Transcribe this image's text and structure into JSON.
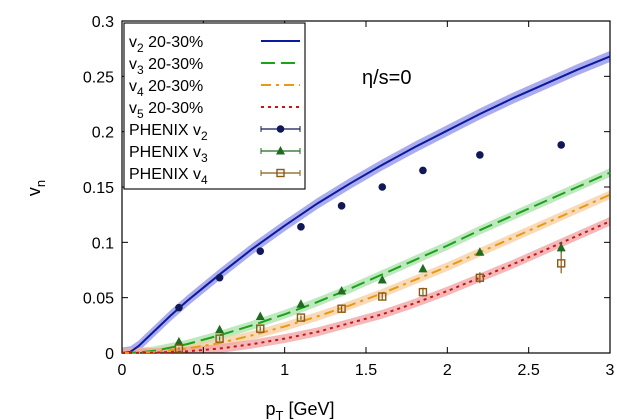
{
  "chart_data": {
    "type": "line",
    "xlabel": "p",
    "xlabel_sub": "T",
    "xlabel_unit": " [GeV]",
    "ylabel": "v",
    "ylabel_sub": "n",
    "xlim": [
      0,
      3
    ],
    "ylim": [
      0,
      0.3
    ],
    "xticks": [
      "0",
      "0.5",
      "1",
      "1.5",
      "2",
      "2.5",
      "3"
    ],
    "yticks": [
      "0",
      "0.05",
      "0.1",
      "0.15",
      "0.2",
      "0.25",
      "0.3"
    ],
    "annotation": "η/s=0",
    "legend_position": "top-left",
    "series": [
      {
        "name": "v2 20-30%",
        "label_main": "v",
        "label_sub": "2",
        "label_rest": " 20-30%",
        "kind": "line",
        "dash": "solid",
        "color": "#0a1a9e",
        "band_color": "#8f90e8",
        "x": [
          0,
          0.05,
          0.1,
          0.2,
          0.3,
          0.4,
          0.5,
          0.6,
          0.8,
          1.0,
          1.2,
          1.4,
          1.6,
          1.8,
          2.0,
          2.2,
          2.4,
          2.6,
          2.8,
          3.0
        ],
        "y": [
          0,
          0.001,
          0.006,
          0.02,
          0.034,
          0.047,
          0.059,
          0.071,
          0.094,
          0.115,
          0.135,
          0.153,
          0.17,
          0.186,
          0.201,
          0.216,
          0.23,
          0.243,
          0.256,
          0.268
        ],
        "band": 0.005
      },
      {
        "name": "v3 20-30%",
        "label_main": "v",
        "label_sub": "3",
        "label_rest": " 20-30%",
        "kind": "line",
        "dash": "14,6",
        "color": "#1aa31a",
        "band_color": "#a8e0a8",
        "x": [
          0,
          0.1,
          0.2,
          0.3,
          0.4,
          0.6,
          0.8,
          1.0,
          1.2,
          1.4,
          1.6,
          1.8,
          2.0,
          2.2,
          2.4,
          2.6,
          2.8,
          3.0
        ],
        "y": [
          0,
          0.0005,
          0.002,
          0.005,
          0.008,
          0.016,
          0.025,
          0.035,
          0.046,
          0.058,
          0.071,
          0.084,
          0.097,
          0.111,
          0.124,
          0.137,
          0.15,
          0.163
        ],
        "band": 0.004
      },
      {
        "name": "v4 20-30%",
        "label_main": "v",
        "label_sub": "4",
        "label_rest": " 20-30%",
        "kind": "line",
        "dash": "10,5,3,5",
        "color": "#e89a10",
        "band_color": "#f7cda0",
        "x": [
          0,
          0.2,
          0.4,
          0.6,
          0.8,
          1.0,
          1.2,
          1.4,
          1.6,
          1.8,
          2.0,
          2.2,
          2.4,
          2.6,
          2.8,
          3.0
        ],
        "y": [
          0,
          0.001,
          0.004,
          0.009,
          0.016,
          0.024,
          0.033,
          0.043,
          0.054,
          0.066,
          0.078,
          0.091,
          0.104,
          0.117,
          0.13,
          0.143
        ],
        "band": 0.004
      },
      {
        "name": "v5 20-30%",
        "label_main": "v",
        "label_sub": "5",
        "label_rest": " 20-30%",
        "kind": "line",
        "dash": "3,4",
        "color": "#c81414",
        "band_color": "#f0a0a0",
        "x": [
          0,
          0.2,
          0.4,
          0.6,
          0.8,
          1.0,
          1.2,
          1.4,
          1.6,
          1.8,
          2.0,
          2.2,
          2.4,
          2.6,
          2.8,
          3.0
        ],
        "y": [
          0,
          0.0003,
          0.0015,
          0.004,
          0.008,
          0.013,
          0.019,
          0.027,
          0.035,
          0.045,
          0.056,
          0.068,
          0.08,
          0.093,
          0.106,
          0.119
        ],
        "band": 0.004
      },
      {
        "name": "PHENIX v2",
        "label_main": "PHENIX v",
        "label_sub": "2",
        "label_rest": "",
        "kind": "points",
        "marker": "circle",
        "color": "#101858",
        "x": [
          0.35,
          0.6,
          0.85,
          1.1,
          1.35,
          1.6,
          1.85,
          2.2,
          2.7
        ],
        "y": [
          0.041,
          0.068,
          0.092,
          0.114,
          0.133,
          0.15,
          0.165,
          0.179,
          0.188
        ],
        "err": [
          0.001,
          0.001,
          0.001,
          0.001,
          0.001,
          0.001,
          0.001,
          0.002,
          0.003
        ]
      },
      {
        "name": "PHENIX v3",
        "label_main": "PHENIX v",
        "label_sub": "3",
        "label_rest": "",
        "kind": "points",
        "marker": "triangle",
        "color": "#1f6b1f",
        "x": [
          0.35,
          0.6,
          0.85,
          1.1,
          1.35,
          1.6,
          1.85,
          2.2,
          2.7
        ],
        "y": [
          0.01,
          0.021,
          0.033,
          0.044,
          0.056,
          0.066,
          0.076,
          0.091,
          0.095
        ],
        "err": [
          0.001,
          0.001,
          0.001,
          0.001,
          0.002,
          0.002,
          0.002,
          0.003,
          0.005
        ]
      },
      {
        "name": "PHENIX v4",
        "label_main": "PHENIX v",
        "label_sub": "4",
        "label_rest": "",
        "kind": "points",
        "marker": "square",
        "color": "#8a5a14",
        "x": [
          0.35,
          0.6,
          0.85,
          1.1,
          1.35,
          1.6,
          1.85,
          2.2,
          2.7
        ],
        "y": [
          0.004,
          0.013,
          0.022,
          0.032,
          0.04,
          0.051,
          0.055,
          0.068,
          0.081
        ],
        "err": [
          0.001,
          0.002,
          0.002,
          0.002,
          0.003,
          0.003,
          0.004,
          0.005,
          0.009
        ]
      }
    ]
  }
}
